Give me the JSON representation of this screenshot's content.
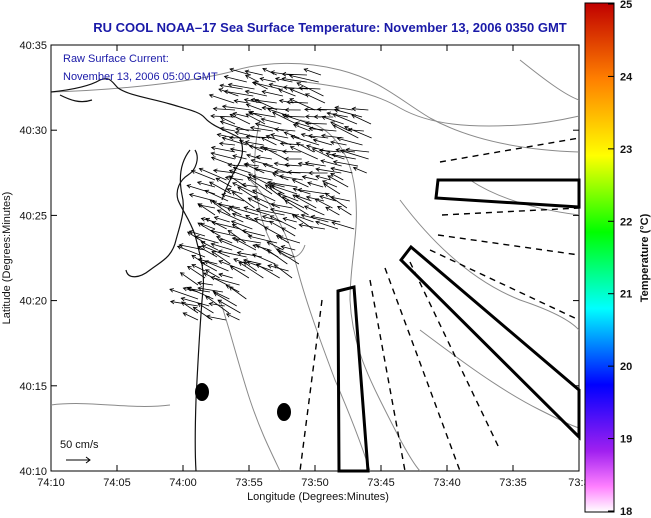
{
  "title": "RU COOL  NOAA–17  Sea Surface Temperature:  November 13, 2006 0350 GMT",
  "current_note": {
    "line1": "Raw Surface Current:",
    "line2": "November 13, 2006 05:00 GMT"
  },
  "scale_label": "50 cm/s",
  "axes": {
    "xlabel": "Longitude (Degrees:Minutes)",
    "ylabel": "Latitude (Degrees:Minutes)",
    "x_ticks": [
      "74:10",
      "74:05",
      "74:00",
      "73:55",
      "73:50",
      "73:45",
      "73:40",
      "73:35",
      "73:3"
    ],
    "y_ticks": [
      "40:35",
      "40:30",
      "40:25",
      "40:20",
      "40:15",
      "40:10"
    ]
  },
  "colorbar": {
    "label": "Temperature (°C)",
    "min": 18,
    "max": 25,
    "ticks": [
      "25",
      "24",
      "23",
      "22",
      "21",
      "20",
      "19",
      "18"
    ]
  }
}
